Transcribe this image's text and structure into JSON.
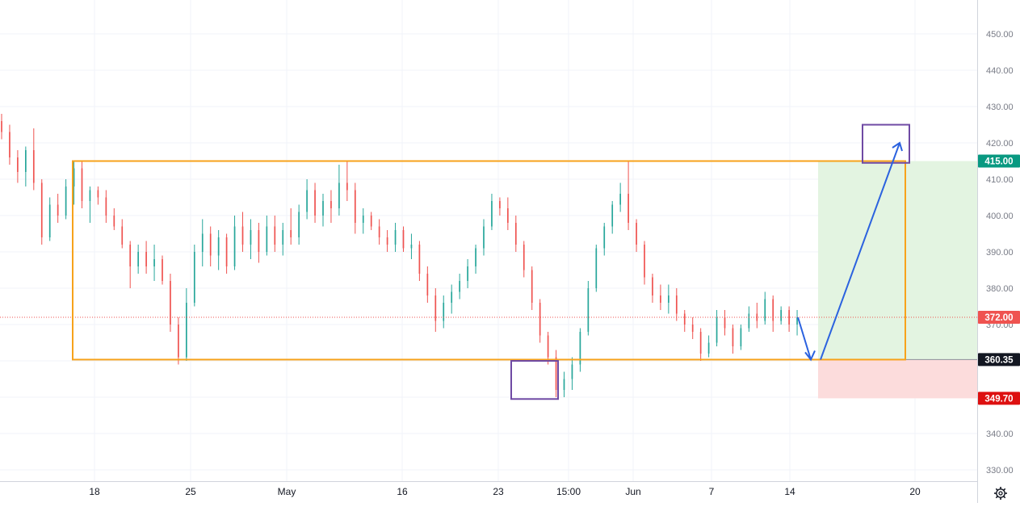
{
  "chart_data": {
    "type": "candlestick",
    "ylim": [
      325,
      460
    ],
    "y_ticks": [
      330,
      340,
      350,
      360,
      370,
      380,
      390,
      400,
      410,
      420,
      430,
      440,
      450
    ],
    "y_tick_labels": [
      "330.00",
      "340.00",
      "350.00",
      "360.00",
      "370.00",
      "380.00",
      "390.00",
      "400.00",
      "410.00",
      "420.00",
      "430.00",
      "440.00",
      "450.00"
    ],
    "x_tick_labels": [
      "18",
      "25",
      "May",
      "16",
      "23",
      "15:00",
      "Jun",
      "7",
      "14",
      "20"
    ],
    "price_tags": [
      {
        "label": "415.00",
        "value": 415.0,
        "color": "#089981"
      },
      {
        "label": "372.00",
        "value": 372.0,
        "color": "#ef5350"
      },
      {
        "label": "360.35",
        "value": 360.35,
        "color": "#131722"
      },
      {
        "label": "349.70",
        "value": 349.7,
        "color": "#dd1010"
      }
    ],
    "last_price": 372.0,
    "range_box": {
      "top": 415.0,
      "bottom": 360.35,
      "color": "#f7a21b"
    },
    "target_zone": {
      "top": 415.0,
      "bottom": 360.35,
      "color": "#e3f4e1"
    },
    "stop_zone": {
      "top": 360.35,
      "bottom": 349.7,
      "color": "#fcdcdc"
    },
    "highlight_boxes": [
      {
        "top": 360.0,
        "bottom": 349.5,
        "color": "#6f4aa4"
      },
      {
        "top": 425.0,
        "bottom": 414.5,
        "color": "#6f4aa4"
      }
    ],
    "arrows": {
      "color": "#2b62df",
      "points": [
        372.0,
        360.35,
        420.0
      ]
    },
    "candles": [
      [
        426,
        428,
        421,
        423
      ],
      [
        423,
        425,
        414,
        416
      ],
      [
        416,
        418,
        409,
        412
      ],
      [
        412,
        419,
        408,
        418
      ],
      [
        418,
        424,
        407,
        409
      ],
      [
        409,
        410,
        392,
        394
      ],
      [
        394,
        405,
        393,
        403
      ],
      [
        403,
        406,
        398,
        400
      ],
      [
        400,
        410,
        399,
        408
      ],
      [
        408,
        415,
        403,
        413
      ],
      [
        413,
        415,
        402,
        404
      ],
      [
        404,
        408,
        398,
        407
      ],
      [
        407,
        408,
        403,
        405
      ],
      [
        405,
        407,
        398,
        400
      ],
      [
        400,
        402,
        396,
        397
      ],
      [
        397,
        399,
        391,
        392
      ],
      [
        392,
        393,
        380,
        386
      ],
      [
        386,
        392,
        384,
        390
      ],
      [
        390,
        393,
        384,
        386
      ],
      [
        386,
        392,
        382,
        388
      ],
      [
        388,
        389,
        381,
        382
      ],
      [
        382,
        384,
        368,
        370
      ],
      [
        370,
        372,
        359,
        361
      ],
      [
        361,
        380,
        360,
        376
      ],
      [
        376,
        392,
        375,
        390
      ],
      [
        390,
        399,
        386,
        395
      ],
      [
        395,
        397,
        386,
        389
      ],
      [
        389,
        396,
        385,
        394
      ],
      [
        394,
        395,
        384,
        386
      ],
      [
        386,
        400,
        385,
        397
      ],
      [
        397,
        401,
        390,
        392
      ],
      [
        392,
        399,
        388,
        396
      ],
      [
        396,
        398,
        387,
        390
      ],
      [
        390,
        400,
        389,
        397
      ],
      [
        397,
        400,
        390,
        392
      ],
      [
        392,
        398,
        389,
        396
      ],
      [
        396,
        402,
        392,
        394
      ],
      [
        394,
        403,
        392,
        401
      ],
      [
        401,
        410,
        399,
        407
      ],
      [
        407,
        409,
        398,
        400
      ],
      [
        400,
        406,
        397,
        404
      ],
      [
        404,
        407,
        398,
        402
      ],
      [
        402,
        414,
        400,
        409
      ],
      [
        409,
        415,
        404,
        407
      ],
      [
        407,
        409,
        395,
        398
      ],
      [
        398,
        402,
        395,
        400
      ],
      [
        400,
        401,
        396,
        397
      ],
      [
        397,
        399,
        392,
        394
      ],
      [
        394,
        396,
        390,
        392
      ],
      [
        392,
        398,
        390,
        396
      ],
      [
        396,
        397,
        390,
        391
      ],
      [
        391,
        395,
        388,
        392
      ],
      [
        392,
        393,
        382,
        384
      ],
      [
        384,
        386,
        376,
        378
      ],
      [
        378,
        380,
        368,
        371
      ],
      [
        371,
        378,
        369,
        376
      ],
      [
        376,
        381,
        373,
        379
      ],
      [
        379,
        384,
        377,
        382
      ],
      [
        382,
        388,
        380,
        386
      ],
      [
        386,
        392,
        384,
        391
      ],
      [
        391,
        399,
        389,
        397
      ],
      [
        397,
        406,
        396,
        404
      ],
      [
        404,
        405,
        400,
        402
      ],
      [
        402,
        405,
        396,
        398
      ],
      [
        398,
        400,
        390,
        392
      ],
      [
        392,
        393,
        383,
        385
      ],
      [
        385,
        386,
        374,
        376
      ],
      [
        376,
        377,
        365,
        367
      ],
      [
        367,
        368,
        359,
        361
      ],
      [
        361,
        363,
        350,
        352
      ],
      [
        352,
        357,
        350,
        355
      ],
      [
        355,
        361,
        352,
        359
      ],
      [
        359,
        369,
        357,
        368
      ],
      [
        368,
        382,
        367,
        380
      ],
      [
        380,
        392,
        379,
        391
      ],
      [
        391,
        398,
        389,
        397
      ],
      [
        397,
        404,
        395,
        403
      ],
      [
        403,
        409,
        401,
        406
      ],
      [
        406,
        415,
        396,
        398
      ],
      [
        398,
        399,
        390,
        392
      ],
      [
        392,
        393,
        381,
        383
      ],
      [
        383,
        384,
        376,
        378
      ],
      [
        378,
        381,
        374,
        376
      ],
      [
        376,
        381,
        373,
        378
      ],
      [
        378,
        380,
        371,
        373
      ],
      [
        373,
        374,
        368,
        370
      ],
      [
        370,
        372,
        366,
        368
      ],
      [
        368,
        369,
        360,
        362
      ],
      [
        362,
        367,
        361,
        365
      ],
      [
        365,
        374,
        364,
        372
      ],
      [
        372,
        374,
        367,
        369
      ],
      [
        369,
        370,
        362,
        364
      ],
      [
        364,
        370,
        363,
        369
      ],
      [
        369,
        375,
        368,
        373
      ],
      [
        373,
        376,
        369,
        371
      ],
      [
        371,
        379,
        370,
        377
      ],
      [
        377,
        378,
        368,
        371
      ],
      [
        371,
        375,
        370,
        374
      ],
      [
        374,
        375,
        368,
        370
      ],
      [
        370,
        374,
        367,
        372
      ]
    ]
  }
}
